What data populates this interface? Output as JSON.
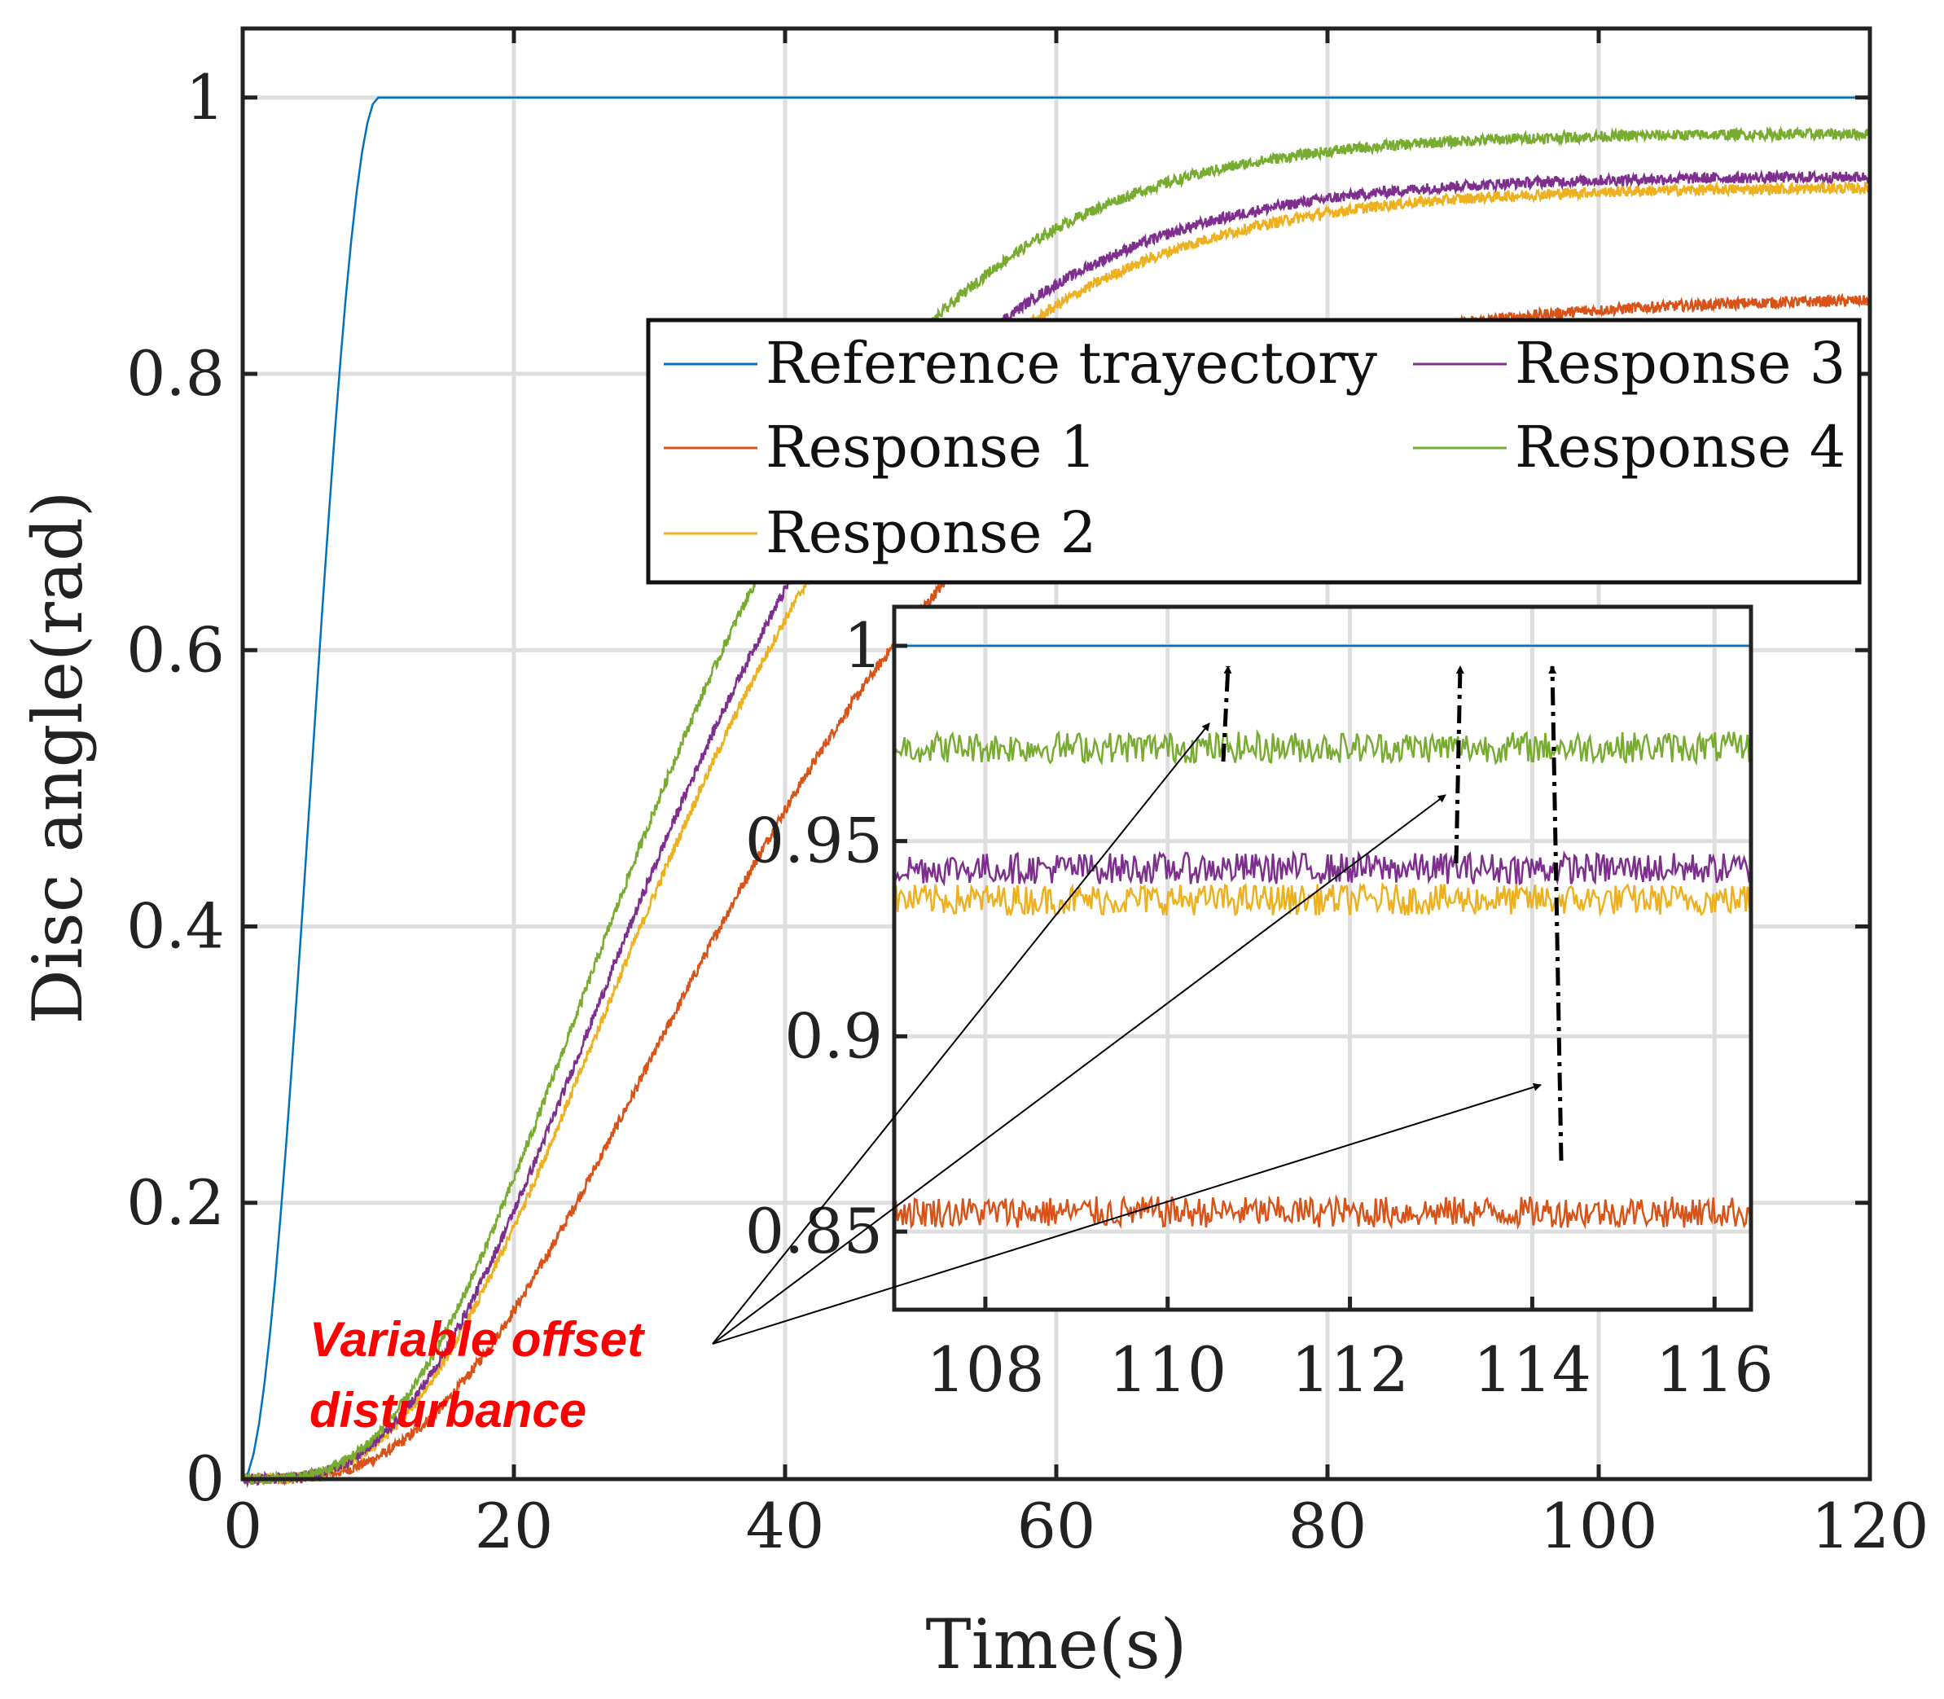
{
  "chart_data": [
    {
      "type": "line",
      "xlabel": "Time(s)",
      "ylabel": "Disc angle(rad)",
      "xlim": [
        0,
        120
      ],
      "ylim": [
        0,
        1.05
      ],
      "xticks": [
        "0",
        "20",
        "40",
        "60",
        "80",
        "100",
        "120"
      ],
      "yticks": [
        "0",
        "0.2",
        "0.4",
        "0.6",
        "0.8",
        "1"
      ],
      "grid": true,
      "legend_position": "top-right",
      "series": [
        {
          "name": "Reference trayectory",
          "color": "#0072BD",
          "t_settle": 10,
          "final": 1.0,
          "shape": "smoothstep"
        },
        {
          "name": "Response 1",
          "color": "#D95319",
          "final": 0.855,
          "tau": 10.0,
          "noise": 0.004
        },
        {
          "name": "Response 2",
          "color": "#EDB120",
          "final": 0.935,
          "tau": 8.8,
          "noise": 0.004
        },
        {
          "name": "Response 3",
          "color": "#7E2F8E",
          "final": 0.943,
          "tau": 8.6,
          "noise": 0.004
        },
        {
          "name": "Response 4",
          "color": "#77AC30",
          "final": 0.974,
          "tau": 8.3,
          "noise": 0.004
        }
      ]
    },
    {
      "type": "line",
      "inset": true,
      "xlim": [
        107,
        116.4
      ],
      "ylim": [
        0.83,
        1.01
      ],
      "xticks": [
        "108",
        "110",
        "112",
        "114",
        "116"
      ],
      "yticks": [
        "0.85",
        "0.9",
        "0.95",
        "1"
      ],
      "grid": true,
      "series": [
        {
          "name": "Reference trayectory",
          "color": "#0072BD",
          "level": 1.0
        },
        {
          "name": "Response 1",
          "color": "#D95319",
          "level": 0.855
        },
        {
          "name": "Response 2",
          "color": "#EDB120",
          "level": 0.935
        },
        {
          "name": "Response 3",
          "color": "#7E2F8E",
          "level": 0.943
        },
        {
          "name": "Response 4",
          "color": "#77AC30",
          "level": 0.974
        }
      ]
    }
  ],
  "annotation": {
    "line1": "Variable offset",
    "line2": "disturbance",
    "color": "#FF0000"
  }
}
